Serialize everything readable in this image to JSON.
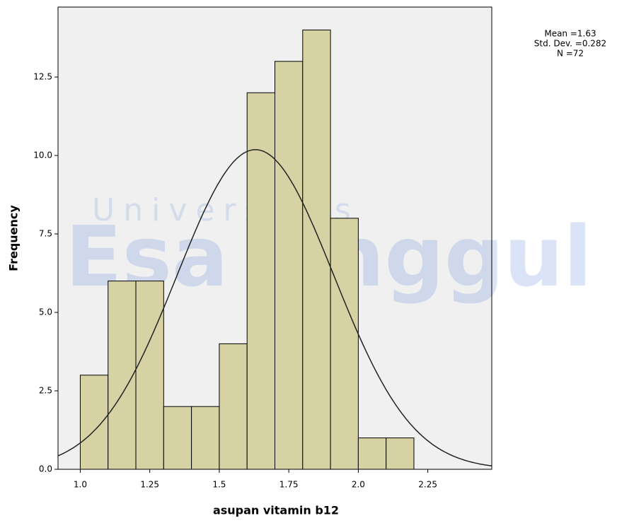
{
  "chart_data": {
    "type": "histogram",
    "x_label": "asupan vitamin b12",
    "y_label": "Frequency",
    "bins": [
      1.0,
      1.1,
      1.2,
      1.3,
      1.4,
      1.5,
      1.6,
      1.7,
      1.8,
      1.9,
      2.0,
      2.1,
      2.2
    ],
    "values": [
      3,
      6,
      6,
      2,
      2,
      4,
      12,
      13,
      14,
      8,
      1,
      1
    ],
    "color": "#d6d2a4",
    "background": "#f0f0f0",
    "xlim": [
      0.92,
      2.48
    ],
    "ylim": [
      0,
      14.73
    ],
    "xticks": [
      {
        "value": 1,
        "label": "1.0"
      },
      1.25,
      1.5,
      1.75,
      {
        "value": 2,
        "label": "2.0"
      },
      2.25
    ],
    "yticks": [
      {
        "value": 0,
        "label": "0.0"
      },
      2.5,
      {
        "value": 5,
        "label": "5.0"
      },
      7.5,
      {
        "value": 10,
        "label": "10.0"
      },
      12.5
    ],
    "normal_curve": true,
    "stats": [
      {
        "label": "Mean =1.63",
        "value": 1.63
      },
      {
        "label": "Std. Dev. =0.282",
        "value": 0.282
      },
      {
        "label": "N =72",
        "value": 72
      }
    ],
    "watermark": [
      "Universitas",
      "Esa Unggul"
    ]
  }
}
